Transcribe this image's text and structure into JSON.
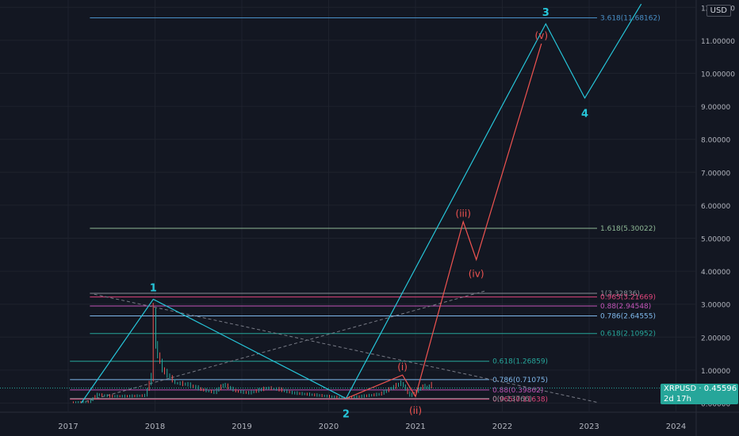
{
  "chart_data": {
    "type": "candlestick",
    "symbol": "XRPUSD",
    "currency": "USD",
    "last_price": "0.45596",
    "countdown": "2d 17h",
    "x_ticks": [
      "2017",
      "2018",
      "2019",
      "2020",
      "2021",
      "2022",
      "2023",
      "2024"
    ],
    "y_ticks": [
      "12.00000",
      "11.00000",
      "10.00000",
      "9.00000",
      "8.00000",
      "7.00000",
      "6.00000",
      "5.00000",
      "4.00000",
      "3.00000",
      "2.00000",
      "1.00000",
      "0.00000"
    ],
    "y_range": [
      0,
      12
    ],
    "price_series": [
      [
        2017.05,
        0.006
      ],
      [
        2017.25,
        0.03
      ],
      [
        2017.35,
        0.25
      ],
      [
        2017.5,
        0.2
      ],
      [
        2017.7,
        0.2
      ],
      [
        2017.9,
        0.22
      ],
      [
        2017.97,
        0.8
      ],
      [
        2018.0,
        2.8
      ],
      [
        2018.02,
        1.7
      ],
      [
        2018.1,
        1.0
      ],
      [
        2018.25,
        0.6
      ],
      [
        2018.4,
        0.55
      ],
      [
        2018.55,
        0.4
      ],
      [
        2018.7,
        0.32
      ],
      [
        2018.8,
        0.55
      ],
      [
        2018.95,
        0.35
      ],
      [
        2019.1,
        0.3
      ],
      [
        2019.3,
        0.45
      ],
      [
        2019.45,
        0.4
      ],
      [
        2019.6,
        0.3
      ],
      [
        2019.8,
        0.25
      ],
      [
        2020.0,
        0.2
      ],
      [
        2020.2,
        0.14
      ],
      [
        2020.4,
        0.2
      ],
      [
        2020.6,
        0.26
      ],
      [
        2020.85,
        0.6
      ],
      [
        2020.95,
        0.22
      ],
      [
        2021.0,
        0.3
      ],
      [
        2021.1,
        0.5
      ],
      [
        2021.15,
        0.45
      ],
      [
        2021.2,
        0.55
      ]
    ],
    "levels": [
      {
        "label": "3.618(11.68162)",
        "value": 11.68162,
        "color": "#4a90c8"
      },
      {
        "label": "1.618(5.30022)",
        "value": 5.30022,
        "color": "#8fb996"
      },
      {
        "label": "1(3.32836)",
        "value": 3.32836,
        "color": "#8a8d95"
      },
      {
        "label": "0.965(3.21669)",
        "value": 3.21669,
        "color": "#e0457b"
      },
      {
        "label": "0.88(2.94548)",
        "value": 2.94548,
        "color": "#c255b8"
      },
      {
        "label": "0.786(2.64555)",
        "value": 2.64555,
        "color": "#7fb8ec"
      },
      {
        "label": "0.618(2.10952)",
        "value": 2.10952,
        "color": "#26a69a"
      },
      {
        "label": "0.618(1.26859)",
        "value": 1.26859,
        "color": "#26a69a"
      },
      {
        "label": "0.786(0.71075)",
        "value": 0.71075,
        "color": "#7fb8ec"
      },
      {
        "label": "0.88(0.39862)",
        "value": 0.39862,
        "color": "#c255b8"
      },
      {
        "label": "0.965(0.11638)",
        "value": 0.11638,
        "color": "#e0457b"
      },
      {
        "label": "0(0.13766)",
        "value": 0.13766,
        "color": "#8a8d95"
      }
    ],
    "wave_primary": [
      {
        "label": "",
        "x": 2017.15,
        "y": 0.0
      },
      {
        "label": "1",
        "x": 2017.98,
        "y": 3.15
      },
      {
        "label": "2",
        "x": 2020.2,
        "y": 0.14
      },
      {
        "label": "3",
        "x": 2022.5,
        "y": 11.5
      },
      {
        "label": "4",
        "x": 2022.95,
        "y": 9.25
      },
      {
        "label": "",
        "x": 2023.6,
        "y": 12.1
      }
    ],
    "wave_secondary": [
      {
        "label": "(i)",
        "x": 2020.85,
        "y": 0.85
      },
      {
        "label": "(ii)",
        "x": 2021.0,
        "y": 0.2
      },
      {
        "label": "(iii)",
        "x": 2021.55,
        "y": 5.5
      },
      {
        "label": "(iv)",
        "x": 2021.7,
        "y": 4.35
      },
      {
        "label": "(v)",
        "x": 2022.45,
        "y": 10.9
      }
    ]
  },
  "colors": {
    "background": "#131722",
    "bull": "#26a69a",
    "bear": "#ef5350",
    "wave_primary": "#26c6da",
    "wave_secondary": "#ef5350",
    "grid": "#1e222d",
    "text": "#b2b5be"
  }
}
